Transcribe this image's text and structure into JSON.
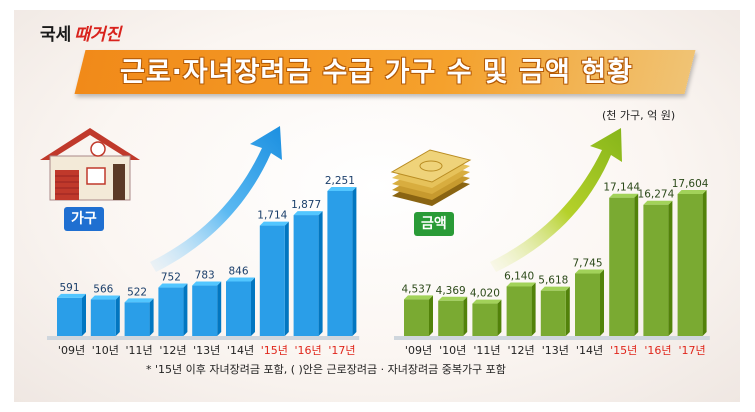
{
  "brand": {
    "part1": "국세",
    "part2": "때거진"
  },
  "title": "근로·자녀장려금 수급 가구 수 및 금액 현황",
  "unit_note": "(천 가구, 억 원)",
  "footnote": "* '15년 이후 자녀장려금 포함, (  )안은 근로장려금 · 자녀장려금 중복가구 포함",
  "colors": {
    "households_bar": "#2a9ee8",
    "amount_bar": "#7aaa32",
    "highlight_tick": "#e0261b",
    "normal_tick": "#222222"
  },
  "icons": {
    "households": "house-icon",
    "amount": "money-stack-icon"
  },
  "chart_data": [
    {
      "type": "bar",
      "label": "가구",
      "categories": [
        "'09년",
        "'10년",
        "'11년",
        "'12년",
        "'13년",
        "'14년",
        "'15년",
        "'16년",
        "'17년"
      ],
      "values": [
        591,
        566,
        522,
        752,
        783,
        846,
        1714,
        1877,
        2251
      ],
      "value_labels": [
        "591",
        "566",
        "522",
        "752",
        "783",
        "846",
        "1,714",
        "1,877",
        "2,251"
      ],
      "highlight": [
        false,
        false,
        false,
        false,
        false,
        false,
        true,
        true,
        true
      ]
    },
    {
      "type": "bar",
      "label": "금액",
      "categories": [
        "'09년",
        "'10년",
        "'11년",
        "'12년",
        "'13년",
        "'14년",
        "'15년",
        "'16년",
        "'17년"
      ],
      "values": [
        4537,
        4369,
        4020,
        6140,
        5618,
        7745,
        17144,
        16274,
        17604
      ],
      "value_labels": [
        "4,537",
        "4,369",
        "4,020",
        "6,140",
        "5,618",
        "7,745",
        "17,144",
        "16,274",
        "17,604"
      ],
      "highlight": [
        false,
        false,
        false,
        false,
        false,
        false,
        true,
        true,
        true
      ]
    }
  ]
}
